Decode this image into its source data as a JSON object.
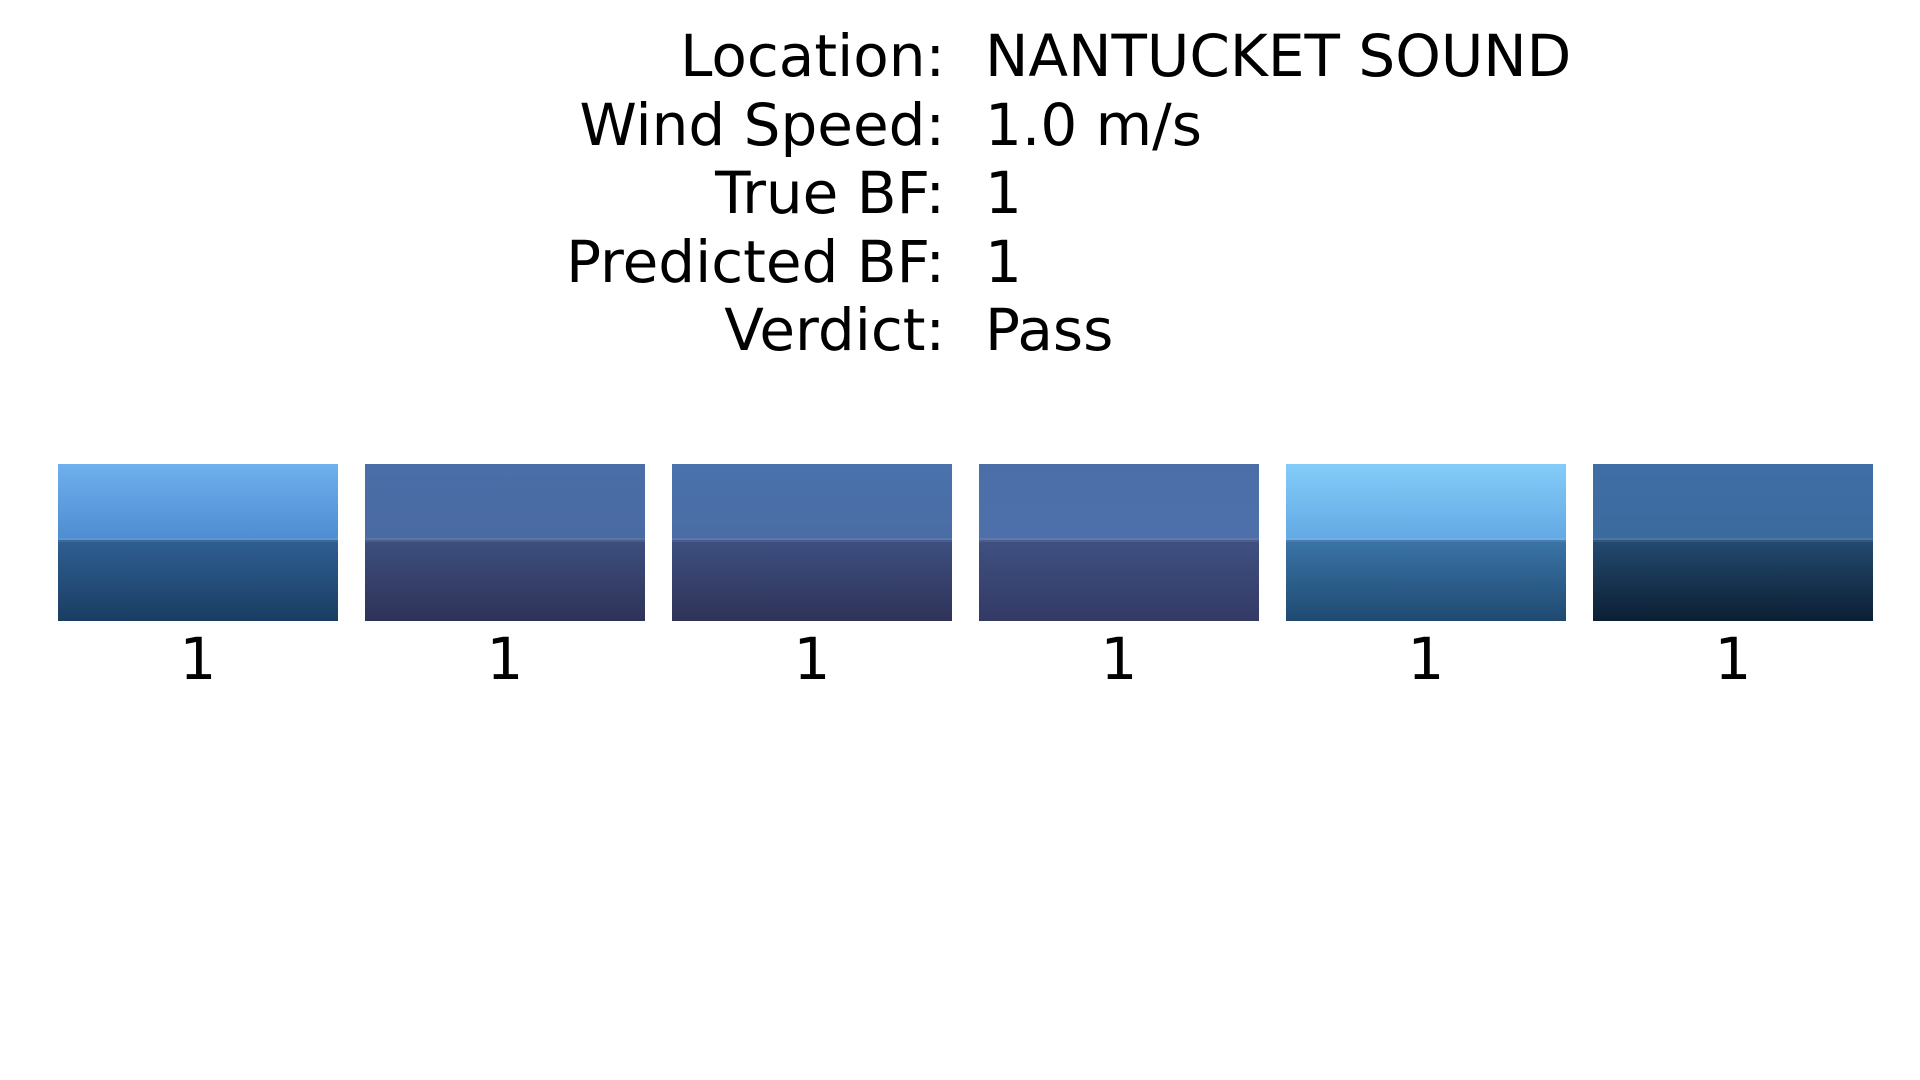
{
  "info": {
    "location_label": "Location:",
    "location_value": "NANTUCKET SOUND",
    "wind_speed_label": "Wind Speed:",
    "wind_speed_value": "1.0 m/s",
    "true_bf_label": "True BF:",
    "true_bf_value": "1",
    "predicted_bf_label": "Predicted BF:",
    "predicted_bf_value": "1",
    "verdict_label": "Verdict:",
    "verdict_value": "Pass"
  },
  "thumbnails": [
    {
      "label": "1",
      "sky_top": "#6fb0ee",
      "sky_bottom": "#4d8bd0",
      "sea_top": "#2f5f93",
      "sea_bottom": "#1a3d62"
    },
    {
      "label": "1",
      "sky_top": "#4a6ea8",
      "sky_bottom": "#4a6aa2",
      "sea_top": "#3d4f7e",
      "sea_bottom": "#2f3258"
    },
    {
      "label": "1",
      "sky_top": "#4a72ac",
      "sky_bottom": "#4a6ca4",
      "sea_top": "#3d4f80",
      "sea_bottom": "#2f3358"
    },
    {
      "label": "1",
      "sky_top": "#4b6ea9",
      "sky_bottom": "#4e70aa",
      "sea_top": "#3f5082",
      "sea_bottom": "#333a64"
    },
    {
      "label": "1",
      "sky_top": "#84ccf8",
      "sky_bottom": "#62a8e4",
      "sea_top": "#3b74a8",
      "sea_bottom": "#1f4a70"
    },
    {
      "label": "1",
      "sky_top": "#3f6ea6",
      "sky_bottom": "#3b6a9e",
      "sea_top": "#234a70",
      "sea_bottom": "#0c1f33"
    }
  ]
}
